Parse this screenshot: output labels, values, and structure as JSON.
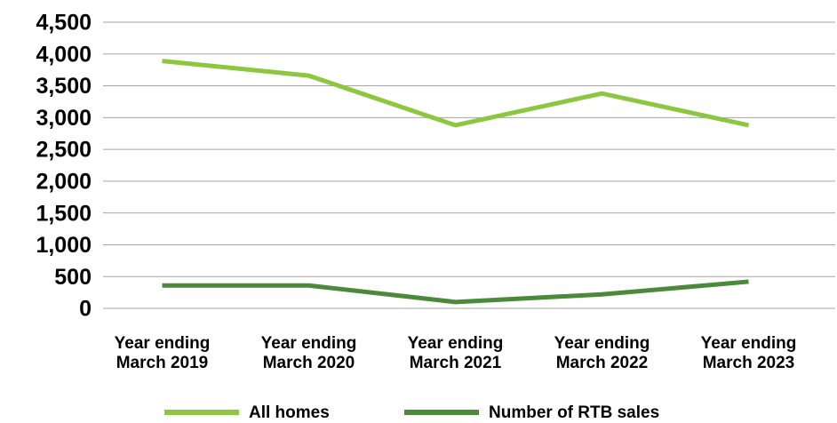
{
  "chart_data": {
    "type": "line",
    "categories": [
      "Year ending March 2019",
      "Year ending March 2020",
      "Year ending March 2021",
      "Year ending March 2022",
      "Year ending March 2023"
    ],
    "series": [
      {
        "name": "All homes",
        "color": "#8dc63f",
        "values": [
          3890,
          3660,
          2880,
          3380,
          2880
        ]
      },
      {
        "name": "Number of RTB sales",
        "color": "#4a8a3a",
        "values": [
          360,
          360,
          100,
          220,
          420
        ]
      }
    ],
    "ylim": [
      0,
      4500
    ],
    "yticks": [
      0,
      500,
      {
        "value": 1000,
        "label": "1,000"
      },
      {
        "value": 1500,
        "label": "1,500"
      },
      {
        "value": 2000,
        "label": "2,000"
      },
      {
        "value": 2500,
        "label": "2,500"
      },
      {
        "value": 3000,
        "label": "3,000"
      },
      {
        "value": 3500,
        "label": "3,500"
      },
      {
        "value": 4000,
        "label": "4,000"
      },
      {
        "value": 4500,
        "label": "4,500"
      }
    ],
    "grid": true,
    "legend": "bottom"
  }
}
